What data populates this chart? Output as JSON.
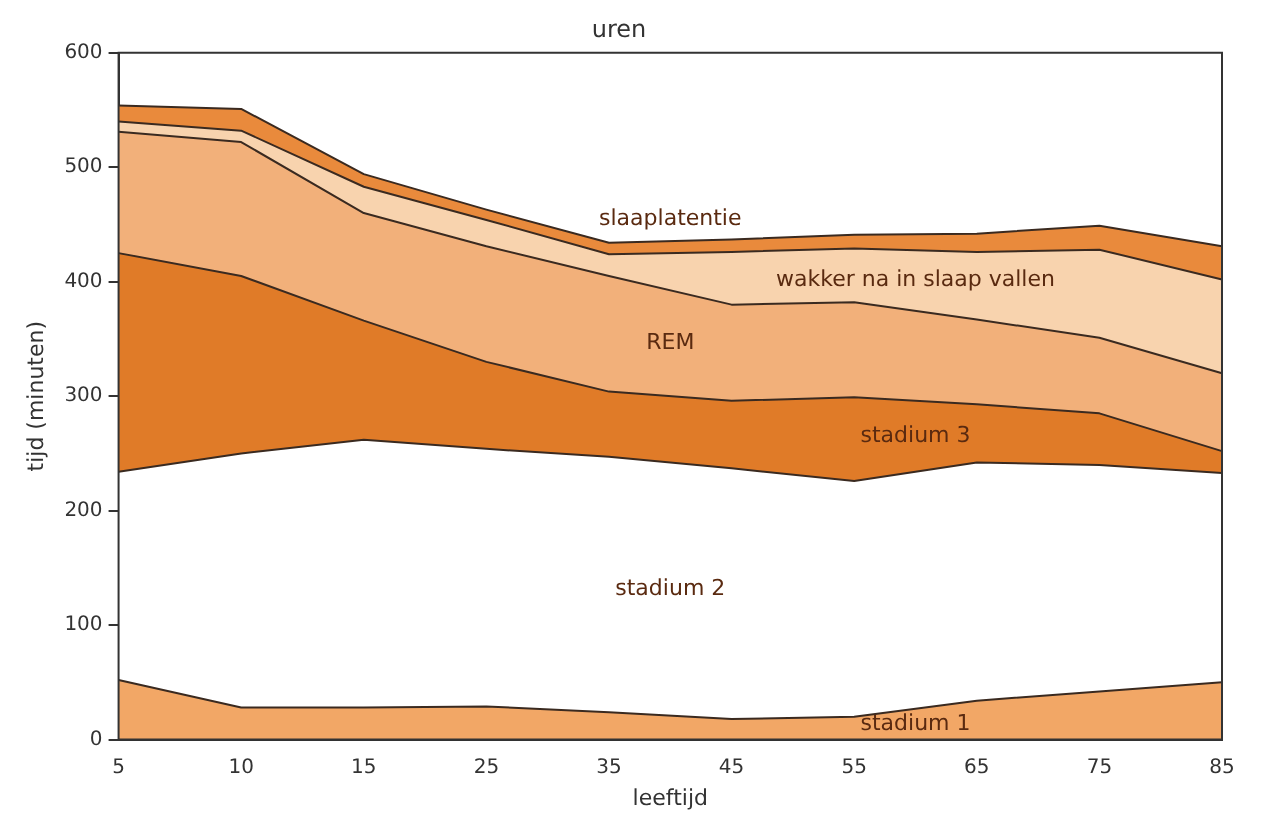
{
  "chart_data": {
    "type": "area",
    "title": "uren",
    "xlabel": "leeftijd",
    "ylabel": "tijd (minuten)",
    "categories": [
      "5",
      "10",
      "15",
      "25",
      "35",
      "45",
      "55",
      "65",
      "75",
      "85"
    ],
    "stacked": true,
    "ylim": [
      0,
      600
    ],
    "yticks": [
      0,
      100,
      200,
      300,
      400,
      500,
      600
    ],
    "grid": false,
    "legend": false,
    "marker": "none",
    "series": [
      {
        "name": "stadium 1",
        "color": "#f2a766",
        "values": [
          52,
          28,
          28,
          29,
          24,
          18,
          20,
          34,
          42,
          50
        ]
      },
      {
        "name": "stadium 2",
        "color": "#ffffff",
        "values": [
          182,
          222,
          234,
          225,
          223,
          219,
          206,
          208,
          198,
          183
        ]
      },
      {
        "name": "stadium 3",
        "color": "#e07b28",
        "values": [
          191,
          155,
          104,
          76,
          57,
          59,
          73,
          51,
          45,
          19
        ]
      },
      {
        "name": "REM",
        "color": "#f2b07a",
        "values": [
          106,
          117,
          94,
          101,
          101,
          84,
          83,
          74,
          66,
          68
        ]
      },
      {
        "name": "wakker na in slaap vallen",
        "color": "#f8d3ae",
        "values": [
          9,
          10,
          23,
          23,
          19,
          46,
          47,
          59,
          77,
          82
        ]
      },
      {
        "name": "slaaplatentie",
        "color": "#e98a3c",
        "values": [
          14,
          19,
          11,
          9,
          10,
          11,
          12,
          16,
          21,
          29
        ]
      }
    ]
  }
}
